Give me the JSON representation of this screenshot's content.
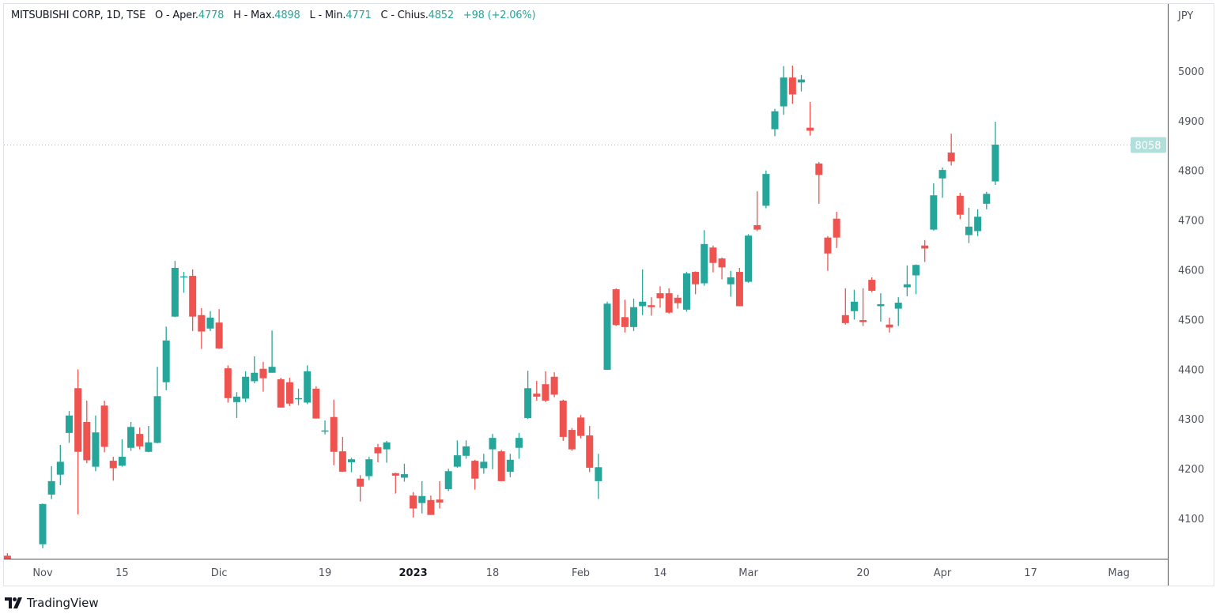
{
  "header": {
    "symbol": "MITSUBISHI CORP, 1D, TSE",
    "open_label": "O - Aper.",
    "open": "4778",
    "high_label": "H - Max.",
    "high": "4898",
    "low_label": "L - Min.",
    "low": "4771",
    "close_label": "C - Chius.",
    "close": "4852",
    "change": "+98 (+2.06%)"
  },
  "branding": {
    "name": "TradingView"
  },
  "colors": {
    "up": "#26a69a",
    "down": "#ef5350",
    "price_label_bg": "#b2dfdb",
    "text": "#131722"
  },
  "chart_data": {
    "type": "candlestick",
    "currency_label": "JPY",
    "ylim": [
      4019,
      5135
    ],
    "y_ticks": [
      4100,
      4200,
      4300,
      4400,
      4500,
      4600,
      4700,
      4800,
      4900,
      5000
    ],
    "x_ticks": [
      {
        "label": "Nov",
        "index": 4,
        "bold": false
      },
      {
        "label": "15",
        "index": 13,
        "bold": false
      },
      {
        "label": "Dic",
        "index": 24,
        "bold": false
      },
      {
        "label": "19",
        "index": 36,
        "bold": false
      },
      {
        "label": "2023",
        "index": 46,
        "bold": true
      },
      {
        "label": "18",
        "index": 55,
        "bold": false
      },
      {
        "label": "Feb",
        "index": 65,
        "bold": false
      },
      {
        "label": "14",
        "index": 74,
        "bold": false
      },
      {
        "label": "Mar",
        "index": 84,
        "bold": false
      },
      {
        "label": "20",
        "index": 97,
        "bold": false
      },
      {
        "label": "Apr",
        "index": 106,
        "bold": false
      },
      {
        "label": "17",
        "index": 116,
        "bold": false
      },
      {
        "label": "Mag",
        "index": 126,
        "bold": false
      }
    ],
    "current_price": 4852,
    "current_price_label": "8058",
    "grid": false,
    "ohlc": [
      [
        4025,
        4030,
        4018,
        4018
      ],
      null,
      null,
      null,
      [
        4048,
        4130,
        4040,
        4129
      ],
      [
        4148,
        4205,
        4139,
        4175
      ],
      [
        4188,
        4248,
        4167,
        4214
      ],
      [
        4272,
        4316,
        4252,
        4307
      ],
      [
        4362,
        4400,
        4108,
        4234
      ],
      [
        4294,
        4337,
        4211,
        4217
      ],
      [
        4204,
        4307,
        4195,
        4273
      ],
      [
        4327,
        4337,
        4233,
        4244
      ],
      [
        4216,
        4224,
        4176,
        4201
      ],
      [
        4206,
        4259,
        4204,
        4224
      ],
      [
        4242,
        4294,
        4236,
        4284
      ],
      [
        4270,
        4283,
        4239,
        4245
      ],
      [
        4234,
        4286,
        4233,
        4253
      ],
      [
        4252,
        4405,
        4251,
        4346
      ],
      [
        4374,
        4486,
        4358,
        4458
      ],
      [
        4506,
        4618,
        4505,
        4604
      ],
      [
        4585,
        4596,
        4554,
        4587
      ],
      [
        4588,
        4601,
        4477,
        4506
      ],
      [
        4509,
        4523,
        4441,
        4476
      ],
      [
        4482,
        4517,
        4477,
        4504
      ],
      [
        4494,
        4521,
        4441,
        4442
      ],
      [
        4402,
        4408,
        4333,
        4342
      ],
      [
        4334,
        4354,
        4302,
        4345
      ],
      [
        4341,
        4396,
        4334,
        4385
      ],
      [
        4376,
        4426,
        4372,
        4393
      ],
      [
        4401,
        4415,
        4355,
        4382
      ],
      [
        4393,
        4478,
        4393,
        4405
      ],
      [
        4380,
        4383,
        4323,
        4323
      ],
      [
        4374,
        4383,
        4326,
        4331
      ],
      [
        4340,
        4361,
        4328,
        4342
      ],
      [
        4333,
        4408,
        4330,
        4396
      ],
      [
        4361,
        4366,
        4301,
        4301
      ],
      [
        4276,
        4297,
        4269,
        4277
      ],
      [
        4304,
        4339,
        4207,
        4234
      ],
      [
        4235,
        4264,
        4194,
        4194
      ],
      [
        4213,
        4222,
        4193,
        4219
      ],
      [
        4180,
        4187,
        4134,
        4164
      ],
      [
        4185,
        4224,
        4177,
        4219
      ],
      [
        4243,
        4250,
        4213,
        4231
      ],
      [
        4239,
        4256,
        4212,
        4253
      ],
      [
        4191,
        4192,
        4150,
        4186
      ],
      [
        4182,
        4210,
        4174,
        4189
      ],
      [
        4146,
        4153,
        4102,
        4120
      ],
      [
        4131,
        4175,
        4110,
        4145
      ],
      [
        4137,
        4146,
        4107,
        4107
      ],
      [
        4138,
        4175,
        4120,
        4132
      ],
      [
        4159,
        4200,
        4155,
        4195
      ],
      [
        4204,
        4257,
        4202,
        4227
      ],
      [
        4226,
        4257,
        4220,
        4245
      ],
      [
        4216,
        4218,
        4158,
        4180
      ],
      [
        4201,
        4230,
        4190,
        4214
      ],
      [
        4239,
        4270,
        4199,
        4262
      ],
      [
        4235,
        4238,
        4175,
        4175
      ],
      [
        4194,
        4230,
        4183,
        4218
      ],
      [
        4242,
        4272,
        4220,
        4262
      ],
      [
        4302,
        4397,
        4300,
        4362
      ],
      [
        4351,
        4377,
        4337,
        4345
      ],
      [
        4370,
        4396,
        4334,
        4337
      ],
      [
        4385,
        4394,
        4344,
        4349
      ],
      [
        4337,
        4339,
        4256,
        4264
      ],
      [
        4278,
        4282,
        4236,
        4239
      ],
      [
        4303,
        4308,
        4261,
        4266
      ],
      [
        4267,
        4286,
        4193,
        4202
      ],
      [
        4175,
        4230,
        4139,
        4203
      ],
      [
        4399,
        4536,
        4399,
        4532
      ],
      [
        4561,
        4563,
        4487,
        4489
      ],
      [
        4505,
        4540,
        4474,
        4485
      ],
      [
        4485,
        4542,
        4477,
        4525
      ],
      [
        4527,
        4601,
        4509,
        4536
      ],
      [
        4529,
        4545,
        4508,
        4525
      ],
      [
        4553,
        4567,
        4524,
        4543
      ],
      [
        4553,
        4563,
        4512,
        4514
      ],
      [
        4544,
        4550,
        4522,
        4533
      ],
      [
        4520,
        4596,
        4516,
        4593
      ],
      [
        4596,
        4597,
        4551,
        4571
      ],
      [
        4573,
        4680,
        4568,
        4652
      ],
      [
        4645,
        4649,
        4595,
        4614
      ],
      [
        4623,
        4625,
        4581,
        4605
      ],
      [
        4571,
        4598,
        4546,
        4585
      ],
      [
        4596,
        4604,
        4527,
        4527
      ],
      [
        4576,
        4672,
        4574,
        4669
      ],
      [
        4690,
        4758,
        4678,
        4681
      ],
      [
        4729,
        4800,
        4724,
        4793
      ],
      [
        4883,
        4924,
        4869,
        4919
      ],
      [
        4929,
        5010,
        4912,
        4987
      ],
      [
        4987,
        5011,
        4934,
        4953
      ],
      [
        4977,
        4992,
        4959,
        4983
      ],
      [
        4886,
        4938,
        4870,
        4880
      ],
      [
        4814,
        4817,
        4733,
        4791
      ],
      [
        4665,
        4668,
        4598,
        4633
      ],
      [
        4703,
        4717,
        4644,
        4665
      ],
      [
        4509,
        4563,
        4490,
        4493
      ],
      [
        4517,
        4560,
        4500,
        4536
      ],
      [
        4499,
        4563,
        4487,
        4495
      ],
      [
        4580,
        4585,
        4555,
        4558
      ],
      [
        4527,
        4553,
        4496,
        4531
      ],
      [
        4490,
        4504,
        4474,
        4484
      ],
      [
        4522,
        4545,
        4487,
        4534
      ],
      [
        4565,
        4609,
        4547,
        4571
      ],
      [
        4589,
        4611,
        4551,
        4610
      ],
      [
        4649,
        4660,
        4616,
        4643
      ],
      [
        4681,
        4774,
        4679,
        4750
      ],
      [
        4784,
        4806,
        4745,
        4801
      ],
      [
        4836,
        4874,
        4810,
        4818
      ],
      [
        4749,
        4755,
        4702,
        4711
      ],
      [
        4670,
        4725,
        4654,
        4687
      ],
      [
        4678,
        4722,
        4668,
        4707
      ],
      [
        4733,
        4757,
        4722,
        4753
      ],
      [
        4778,
        4898,
        4771,
        4852
      ]
    ]
  }
}
